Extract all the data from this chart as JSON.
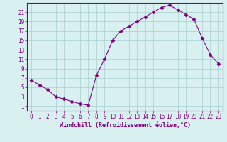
{
  "x": [
    0,
    1,
    2,
    3,
    4,
    5,
    6,
    7,
    8,
    9,
    10,
    11,
    12,
    13,
    14,
    15,
    16,
    17,
    18,
    19,
    20,
    21,
    22,
    23
  ],
  "y": [
    6.5,
    5.5,
    4.5,
    3.0,
    2.5,
    2.0,
    1.5,
    1.2,
    7.5,
    11.0,
    15.0,
    17.0,
    18.0,
    19.0,
    20.0,
    21.0,
    22.0,
    22.5,
    21.5,
    20.5,
    19.5,
    15.5,
    12.0,
    10.0
  ],
  "line_color": "#800080",
  "marker": "D",
  "markersize": 2.5,
  "linewidth": 0.8,
  "xlabel": "Windchill (Refroidissement éolien,°C)",
  "xlabel_fontsize": 6.0,
  "ylabel_ticks": [
    1,
    3,
    5,
    7,
    9,
    11,
    13,
    15,
    17,
    19,
    21
  ],
  "xtick_labels": [
    "0",
    "1",
    "2",
    "3",
    "4",
    "5",
    "6",
    "7",
    "8",
    "9",
    "10",
    "11",
    "12",
    "13",
    "14",
    "15",
    "16",
    "17",
    "18",
    "19",
    "20",
    "21",
    "22",
    "23"
  ],
  "xlim": [
    -0.5,
    23.5
  ],
  "ylim": [
    0,
    23
  ],
  "bg_color": "#d8f0f0",
  "grid_color": "#aacece",
  "tick_color": "#800080",
  "tick_fontsize": 5.5,
  "spine_color": "#800080"
}
